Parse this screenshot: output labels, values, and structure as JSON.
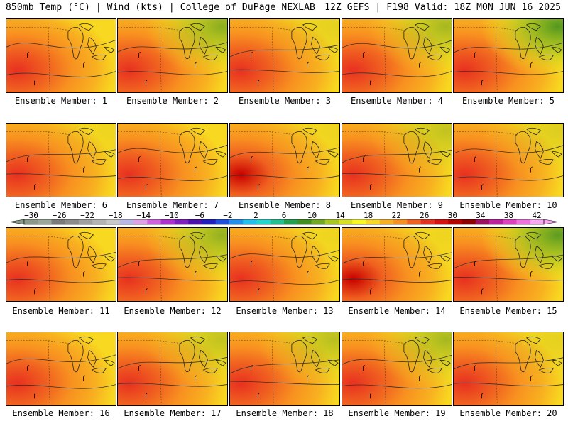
{
  "header": {
    "left": "850mb Temp (°C) | Wind (kts) | College of DuPage NEXLAB",
    "right": "12Z GEFS | F198 Valid: 18Z MON JUN 16 2025"
  },
  "members": [
    {
      "label": "Ensemble Member: 1",
      "warmth": 0.55,
      "green": 0.0
    },
    {
      "label": "Ensemble Member: 2",
      "warmth": 0.55,
      "green": 0.6
    },
    {
      "label": "Ensemble Member: 3",
      "warmth": 0.6,
      "green": 0.1
    },
    {
      "label": "Ensemble Member: 4",
      "warmth": 0.65,
      "green": 0.45
    },
    {
      "label": "Ensemble Member: 5",
      "warmth": 0.3,
      "green": 0.9
    },
    {
      "label": "Ensemble Member: 6",
      "warmth": 0.5,
      "green": 0.05
    },
    {
      "label": "Ensemble Member: 7",
      "warmth": 0.6,
      "green": 0.0
    },
    {
      "label": "Ensemble Member: 8",
      "warmth": 0.75,
      "green": 0.05
    },
    {
      "label": "Ensemble Member: 9",
      "warmth": 0.55,
      "green": 0.3
    },
    {
      "label": "Ensemble Member: 10",
      "warmth": 0.6,
      "green": 0.15
    },
    {
      "label": "Ensemble Member: 11",
      "warmth": 0.6,
      "green": 0.0
    },
    {
      "label": "Ensemble Member: 12",
      "warmth": 0.6,
      "green": 0.55
    },
    {
      "label": "Ensemble Member: 13",
      "warmth": 0.65,
      "green": 0.05
    },
    {
      "label": "Ensemble Member: 14",
      "warmth": 0.8,
      "green": 0.05
    },
    {
      "label": "Ensemble Member: 15",
      "warmth": 0.45,
      "green": 0.85
    },
    {
      "label": "Ensemble Member: 16",
      "warmth": 0.5,
      "green": 0.0
    },
    {
      "label": "Ensemble Member: 17",
      "warmth": 0.7,
      "green": 0.3
    },
    {
      "label": "Ensemble Member: 18",
      "warmth": 0.55,
      "green": 0.35
    },
    {
      "label": "Ensemble Member: 19",
      "warmth": 0.55,
      "green": 0.45
    },
    {
      "label": "Ensemble Member: 20",
      "warmth": 0.55,
      "green": 0.1
    }
  ],
  "colorbar": {
    "ticks": [
      "-30",
      "-26",
      "-22",
      "-18",
      "-14",
      "-10",
      "-6",
      "-2",
      "2",
      "6",
      "10",
      "14",
      "18",
      "22",
      "26",
      "30",
      "34",
      "38",
      "42"
    ],
    "colors": [
      "#8a9a8a",
      "#9aa89a",
      "#7a7a7a",
      "#8c8c8c",
      "#a0a0a0",
      "#b4b4b4",
      "#c8c8c8",
      "#b8b8e8",
      "#e0a0e8",
      "#d060e0",
      "#b030d0",
      "#8020c0",
      "#5010b0",
      "#2020c0",
      "#2050e0",
      "#2090f0",
      "#20c0f0",
      "#20d8d0",
      "#20c090",
      "#20a050",
      "#409020",
      "#70a820",
      "#a8c820",
      "#d8e020",
      "#f8f820",
      "#f8d820",
      "#f8b020",
      "#f89020",
      "#f06020",
      "#e83020",
      "#d81010",
      "#b80000",
      "#900000",
      "#a01060",
      "#c020a0",
      "#e040c0",
      "#f070e0",
      "#f8a8f0"
    ]
  }
}
